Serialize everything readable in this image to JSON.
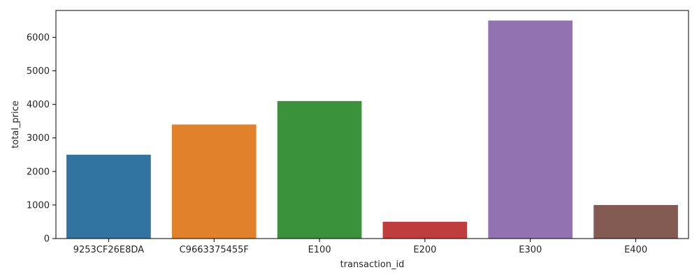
{
  "chart_data": {
    "type": "bar",
    "title": "",
    "xlabel": "transaction_id",
    "ylabel": "total_price",
    "categories": [
      "9253CF26E8DA",
      "C9663375455F",
      "E100",
      "E200",
      "E300",
      "E400"
    ],
    "values": [
      2500,
      3400,
      4100,
      500,
      6500,
      1000
    ],
    "colors": [
      "#3274a1",
      "#e1812c",
      "#3a923a",
      "#c03d3e",
      "#9372b2",
      "#845b53"
    ],
    "ylim": [
      0,
      6800
    ],
    "yticks": [
      0,
      1000,
      2000,
      3000,
      4000,
      5000,
      6000
    ],
    "grid": false,
    "legend": "none"
  }
}
